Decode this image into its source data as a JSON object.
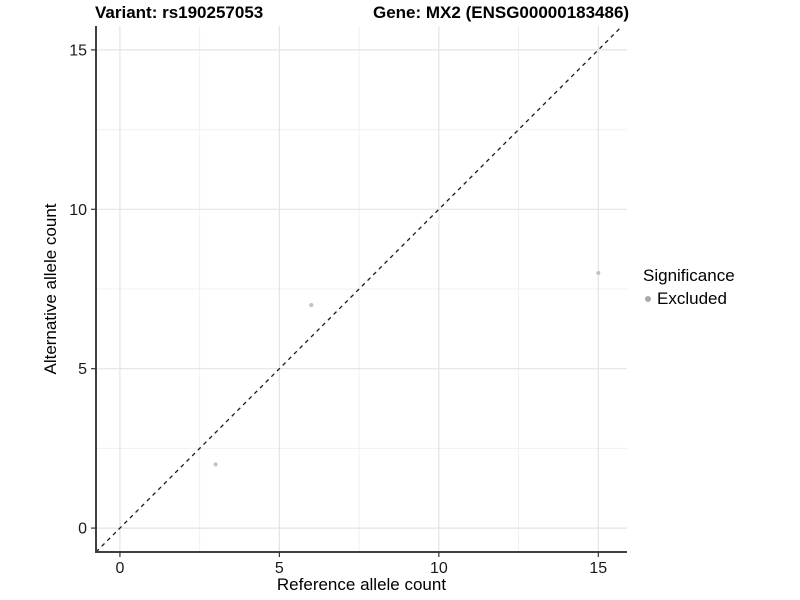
{
  "header": {
    "variant_title": "Variant: rs190257053",
    "gene_title": "Gene: MX2 (ENSG00000183486)"
  },
  "legend": {
    "title": "Significance",
    "items": [
      {
        "label": "Excluded",
        "color": "#a8a8a8"
      }
    ]
  },
  "chart_data": {
    "type": "scatter",
    "title": "Variant: rs190257053  |  Gene: MX2 (ENSG00000183486)",
    "xlabel": "Reference allele count",
    "ylabel": "Alternative allele count",
    "xlim": [
      -0.75,
      15.9
    ],
    "ylim": [
      -0.75,
      15.75
    ],
    "x_ticks": [
      0,
      5,
      10,
      15
    ],
    "y_ticks": [
      0,
      5,
      10,
      15
    ],
    "x_minor_ticks": [
      2.5,
      7.5,
      12.5
    ],
    "y_minor_ticks": [
      2.5,
      7.5,
      12.5
    ],
    "grid": true,
    "legend_position": "right",
    "series": [
      {
        "name": "Excluded",
        "color": "#c0c0c0",
        "point_radius": 2,
        "points": [
          {
            "x": 3,
            "y": 2
          },
          {
            "x": 6,
            "y": 7
          },
          {
            "x": 15,
            "y": 8
          }
        ]
      }
    ],
    "reference_line": {
      "kind": "identity",
      "equation": "y = x",
      "style": "dashed",
      "color": "#1a1a1a"
    },
    "colors": {
      "major_grid": "#e4e4e4",
      "minor_grid": "#f0f0f0",
      "axis_line": "#404040",
      "tick_mark": "#333333",
      "tick_label": "#1a1a1a",
      "background": "#ffffff"
    }
  }
}
